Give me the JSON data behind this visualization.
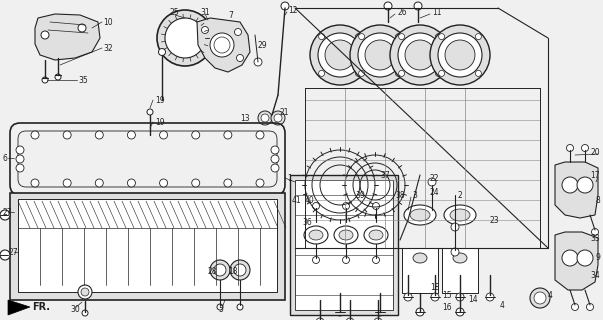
{
  "bg_color": "#f0f0f0",
  "fig_width": 6.03,
  "fig_height": 3.2,
  "dpi": 100,
  "line_color": "#222222",
  "gray_fill": "#c8c8c8",
  "light_gray": "#e0e0e0"
}
